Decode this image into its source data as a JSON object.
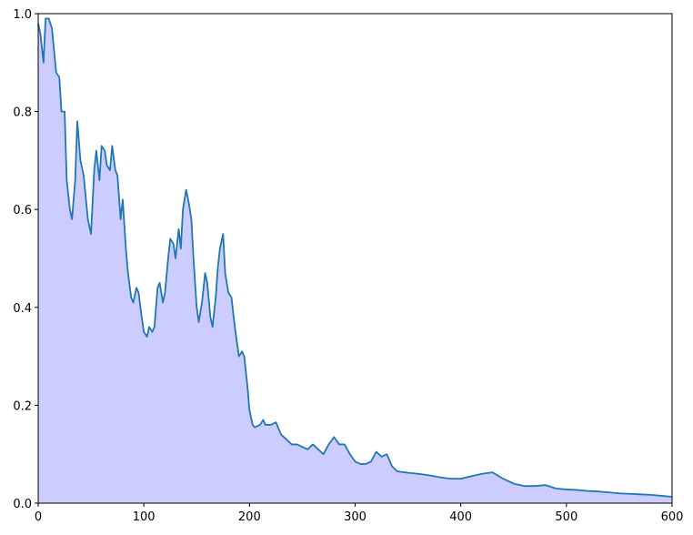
{
  "chart_data": {
    "type": "area",
    "x": [
      0,
      2,
      5,
      7,
      10,
      13,
      17,
      20,
      22,
      25,
      27,
      30,
      32,
      35,
      37,
      40,
      43,
      47,
      50,
      53,
      55,
      58,
      60,
      63,
      65,
      68,
      70,
      73,
      75,
      78,
      80,
      83,
      85,
      88,
      90,
      93,
      95,
      98,
      100,
      103,
      105,
      108,
      110,
      113,
      115,
      118,
      120,
      123,
      125,
      128,
      130,
      133,
      135,
      137,
      140,
      142,
      145,
      147,
      150,
      152,
      155,
      158,
      160,
      163,
      165,
      168,
      170,
      172,
      175,
      177,
      180,
      183,
      185,
      188,
      190,
      193,
      195,
      198,
      200,
      203,
      205,
      210,
      213,
      215,
      220,
      225,
      230,
      235,
      240,
      245,
      250,
      255,
      260,
      265,
      270,
      275,
      280,
      285,
      290,
      295,
      300,
      305,
      310,
      315,
      320,
      325,
      330,
      335,
      340,
      350,
      360,
      370,
      380,
      390,
      400,
      410,
      420,
      430,
      440,
      450,
      460,
      470,
      480,
      490,
      500,
      510,
      520,
      530,
      540,
      550,
      560,
      570,
      580,
      590,
      600
    ],
    "values": [
      0.98,
      0.96,
      0.9,
      0.99,
      0.99,
      0.97,
      0.88,
      0.87,
      0.8,
      0.8,
      0.66,
      0.6,
      0.58,
      0.66,
      0.78,
      0.7,
      0.67,
      0.58,
      0.55,
      0.68,
      0.72,
      0.66,
      0.73,
      0.72,
      0.69,
      0.68,
      0.73,
      0.68,
      0.67,
      0.58,
      0.62,
      0.52,
      0.47,
      0.42,
      0.41,
      0.44,
      0.43,
      0.38,
      0.35,
      0.34,
      0.36,
      0.35,
      0.36,
      0.44,
      0.45,
      0.41,
      0.43,
      0.5,
      0.54,
      0.53,
      0.5,
      0.56,
      0.52,
      0.6,
      0.64,
      0.62,
      0.58,
      0.5,
      0.4,
      0.37,
      0.41,
      0.47,
      0.45,
      0.38,
      0.36,
      0.42,
      0.48,
      0.52,
      0.55,
      0.47,
      0.43,
      0.42,
      0.38,
      0.33,
      0.3,
      0.31,
      0.3,
      0.24,
      0.19,
      0.16,
      0.155,
      0.16,
      0.17,
      0.16,
      0.16,
      0.165,
      0.14,
      0.13,
      0.12,
      0.12,
      0.115,
      0.11,
      0.12,
      0.11,
      0.1,
      0.12,
      0.135,
      0.12,
      0.12,
      0.1,
      0.085,
      0.08,
      0.08,
      0.085,
      0.105,
      0.095,
      0.1,
      0.075,
      0.065,
      0.062,
      0.06,
      0.057,
      0.053,
      0.05,
      0.05,
      0.055,
      0.06,
      0.063,
      0.05,
      0.04,
      0.035,
      0.035,
      0.037,
      0.03,
      0.028,
      0.027,
      0.025,
      0.024,
      0.022,
      0.02,
      0.019,
      0.018,
      0.017,
      0.015,
      0.013
    ],
    "color": "#1f77b4",
    "fill_color": "#ccccff",
    "xlim": [
      0,
      600
    ],
    "ylim": [
      0,
      1
    ],
    "xticks": [
      0,
      100,
      200,
      300,
      400,
      500,
      600
    ],
    "yticks": [
      {
        "value": 0,
        "label": "0.0"
      },
      0.2,
      0.4,
      0.6,
      0.8,
      {
        "value": 1,
        "label": "1.0"
      }
    ],
    "grid": false
  }
}
